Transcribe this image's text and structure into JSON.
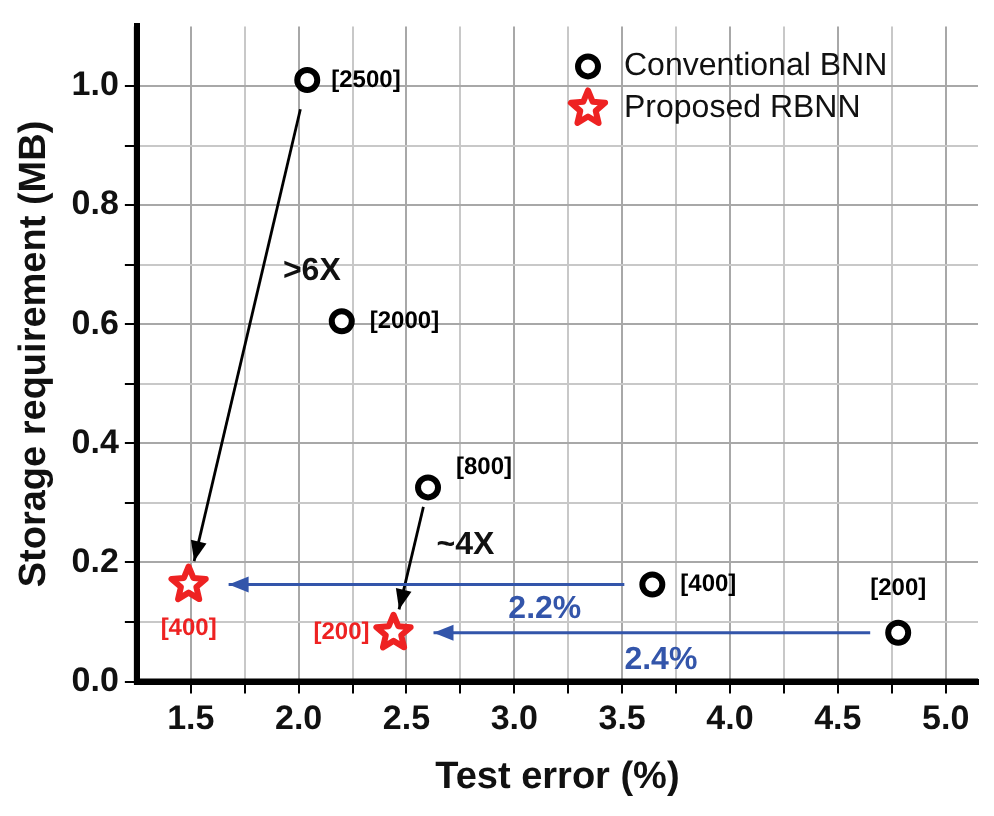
{
  "chart_data": {
    "type": "scatter",
    "xlabel": "Test error (%)",
    "ylabel": "Storage requirement (MB)",
    "xlim": [
      1.25,
      5.15
    ],
    "ylim": [
      0,
      1.1
    ],
    "xticks": [
      {
        "value": 1.5,
        "label": "1.5"
      },
      {
        "value": 1.75,
        "label": null
      },
      {
        "value": 2,
        "label": "2.0"
      },
      {
        "value": 2.25,
        "label": null
      },
      {
        "value": 2.5,
        "label": "2.5"
      },
      {
        "value": 2.75,
        "label": null
      },
      {
        "value": 3,
        "label": "3.0"
      },
      {
        "value": 3.25,
        "label": null
      },
      {
        "value": 3.5,
        "label": "3.5"
      },
      {
        "value": 3.75,
        "label": null
      },
      {
        "value": 4,
        "label": "4.0"
      },
      {
        "value": 4.25,
        "label": null
      },
      {
        "value": 4.5,
        "label": "4.5"
      },
      {
        "value": 4.75,
        "label": null
      },
      {
        "value": 5,
        "label": "5.0"
      }
    ],
    "yticks": [
      {
        "value": 0,
        "label": "0.0"
      },
      {
        "value": 0.1,
        "label": null
      },
      {
        "value": 0.2,
        "label": "0.2"
      },
      {
        "value": 0.3,
        "label": null
      },
      {
        "value": 0.4,
        "label": "0.4"
      },
      {
        "value": 0.5,
        "label": null
      },
      {
        "value": 0.6,
        "label": "0.6"
      },
      {
        "value": 0.7,
        "label": null
      },
      {
        "value": 0.8,
        "label": "0.8"
      },
      {
        "value": 0.9,
        "label": null
      },
      {
        "value": 1,
        "label": "1.0"
      }
    ],
    "grid": true,
    "legend": "top right",
    "series": [
      {
        "name": "Conventional BNN",
        "color": "#000000",
        "marker": "circle",
        "x": [
          2.04,
          2.2,
          2.6,
          3.64,
          4.78
        ],
        "values": [
          1.01,
          0.605,
          0.326,
          0.163,
          0.082
        ]
      },
      {
        "name": "Proposed RBNN",
        "color": "#ee2222",
        "marker": "star",
        "x": [
          1.49,
          2.44
        ],
        "values": [
          0.163,
          0.082
        ]
      }
    ],
    "annotations": [
      {
        "text": "[2500]",
        "x": 2.04,
        "y": 1.01
      },
      {
        "text": "[2000]",
        "x": 2.2,
        "y": 0.605
      },
      {
        "text": "[800]",
        "x": 2.6,
        "y": 0.326
      },
      {
        "text": "[400]",
        "x": 3.64,
        "y": 0.163
      },
      {
        "text": "[200]",
        "x": 4.78,
        "y": 0.082
      },
      {
        "text": "[400]",
        "x": 1.49,
        "y": 0.163
      },
      {
        "text": "[200]",
        "x": 2.44,
        "y": 0.082
      },
      ">6X",
      {
        "text": "~4X",
        "x": 2.44,
        "y": 0.082
      },
      "2.2%",
      "2.4%"
    ]
  }
}
